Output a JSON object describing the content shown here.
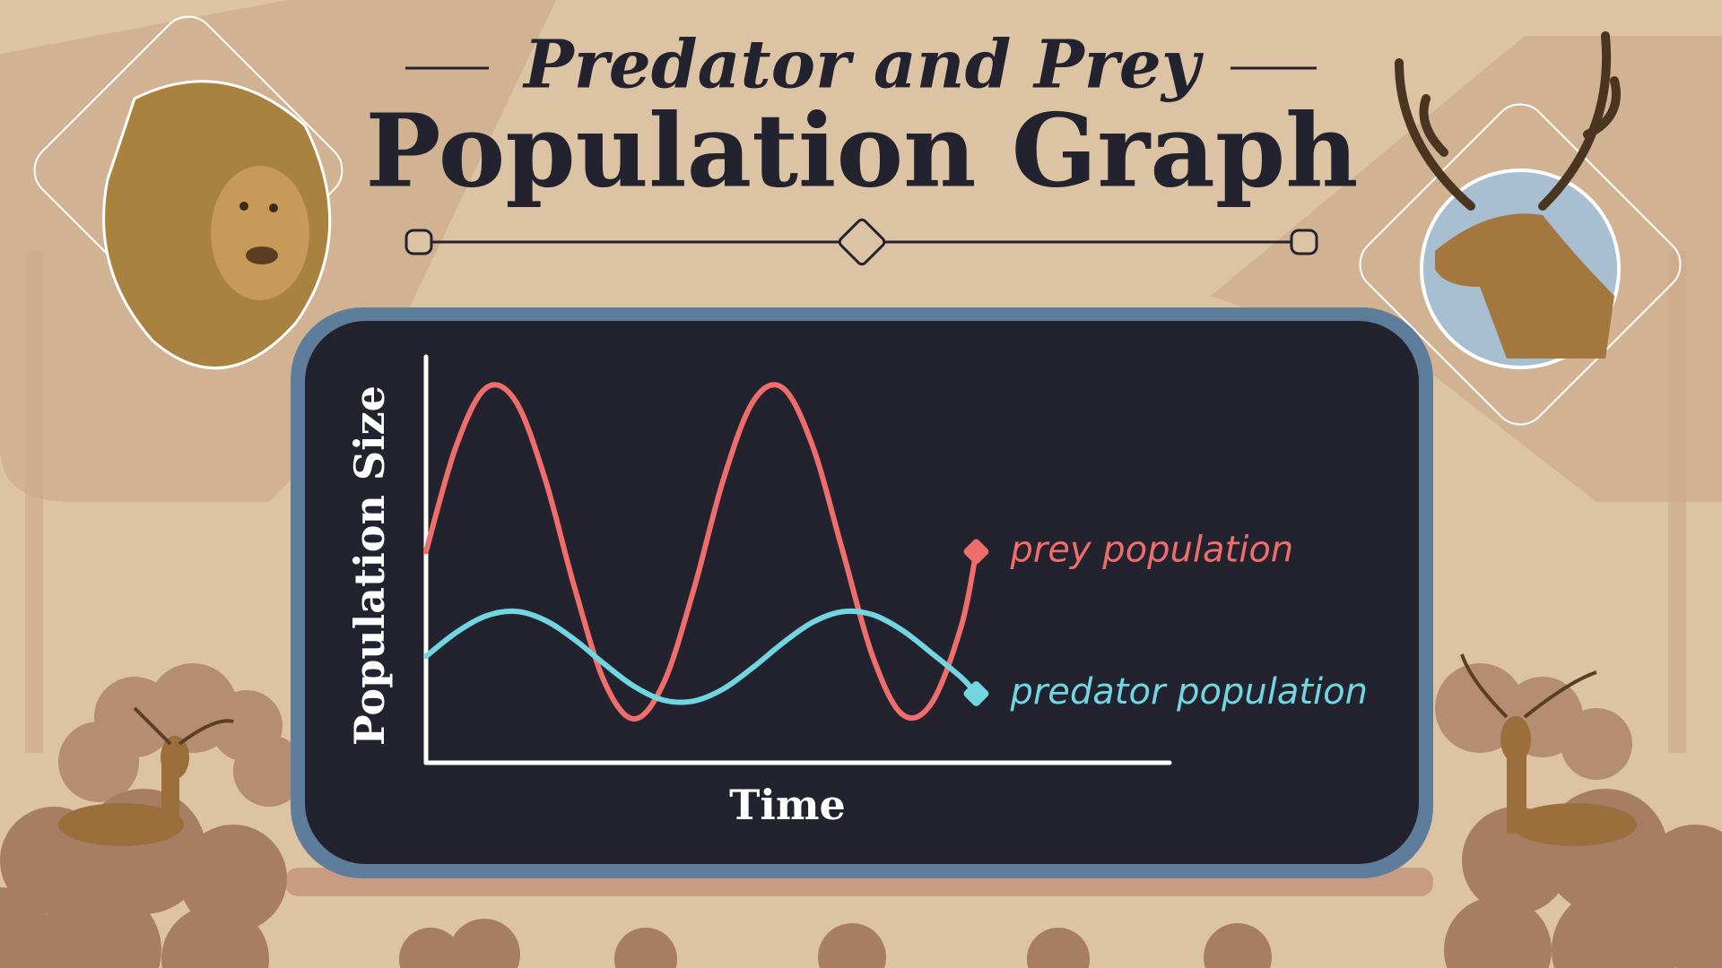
{
  "chart_data": {
    "type": "line",
    "title": "Predator and Prey",
    "subtitle": "Population Graph",
    "xlabel": "Time",
    "ylabel": "Population Size",
    "xlim": [
      0,
      100
    ],
    "ylim": [
      0,
      100
    ],
    "x": [
      0,
      4,
      8,
      12,
      16,
      20,
      24,
      28,
      32,
      36,
      40,
      44,
      48,
      52,
      56,
      60,
      64,
      68,
      72,
      74
    ],
    "series": [
      {
        "name": "prey population",
        "color": "#ef6d6b",
        "values": [
          52.0,
          77.7,
          92.2,
          89.2,
          70.0,
          43.0,
          19.9,
          10.8,
          19.8,
          42.6,
          69.8,
          89.0,
          92.3,
          78.0,
          52.4,
          26.6,
          12.0,
          14.7,
          33.7,
          52.0
        ]
      },
      {
        "name": "predator population",
        "color": "#72d6e2",
        "values": [
          26.2,
          32.0,
          36.1,
          37.3,
          35.1,
          30.3,
          24.3,
          18.8,
          15.4,
          15.2,
          18.2,
          23.5,
          29.5,
          34.6,
          37.2,
          36.5,
          32.7,
          27.0,
          21.0,
          17.0
        ]
      }
    ]
  }
}
